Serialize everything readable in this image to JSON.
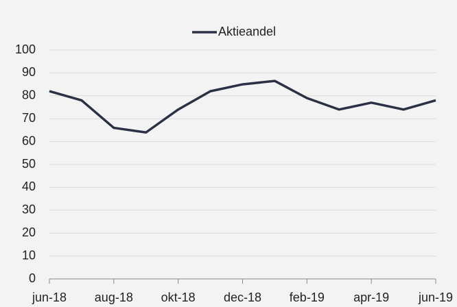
{
  "chart_data": {
    "type": "line",
    "categories": [
      "jun-18",
      null,
      "aug-18",
      null,
      "okt-18",
      null,
      "dec-18",
      null,
      "feb-19",
      null,
      "apr-19",
      null,
      "jun-19"
    ],
    "series": [
      {
        "name": "Aktieandel",
        "color": "#2b3145",
        "values": [
          82,
          78,
          66,
          64,
          74,
          82,
          85,
          86.5,
          79,
          74,
          77,
          74,
          78
        ]
      }
    ],
    "ylim": [
      0,
      100
    ],
    "yticks": [
      0,
      10,
      20,
      30,
      40,
      50,
      60,
      70,
      80,
      90,
      100
    ],
    "grid": true,
    "legend": "top"
  }
}
